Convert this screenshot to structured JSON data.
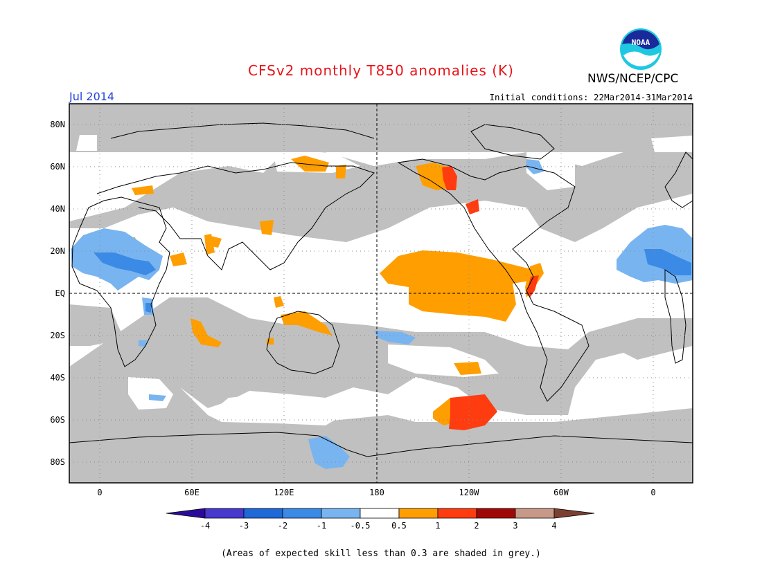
{
  "header": {
    "title": "CFSv2 monthly T850 anomalies (K)",
    "organization": "NWS/NCEP/CPC",
    "logo_text": "NOAA",
    "target_month": "Jul 2014",
    "initial_conditions": "Initial conditions: 22Mar2014-31Mar2014"
  },
  "map": {
    "lat_labels": [
      "80N",
      "60N",
      "40N",
      "20N",
      "EQ",
      "20S",
      "40S",
      "60S",
      "80S"
    ],
    "lon_labels": [
      "0",
      "60E",
      "120E",
      "180",
      "120W",
      "60W",
      "0"
    ]
  },
  "colorbar": {
    "tick_labels": [
      "-4",
      "-3",
      "-2",
      "-1",
      "-0.5",
      "0.5",
      "1",
      "2",
      "3",
      "4"
    ],
    "colors": [
      "#2a0a9a",
      "#4838cc",
      "#1e68d8",
      "#3a8ae6",
      "#78b4f0",
      "#ffffff",
      "#ff9e00",
      "#ff3c10",
      "#a00808",
      "#c89888",
      "#7a4030"
    ]
  },
  "footnote": "(Areas of expected skill less than 0.3 are shaded in grey.)",
  "colors": {
    "grey_low_skill": "#c0c0c0",
    "title_red": "#e8141a",
    "month_blue": "#2040e0"
  }
}
